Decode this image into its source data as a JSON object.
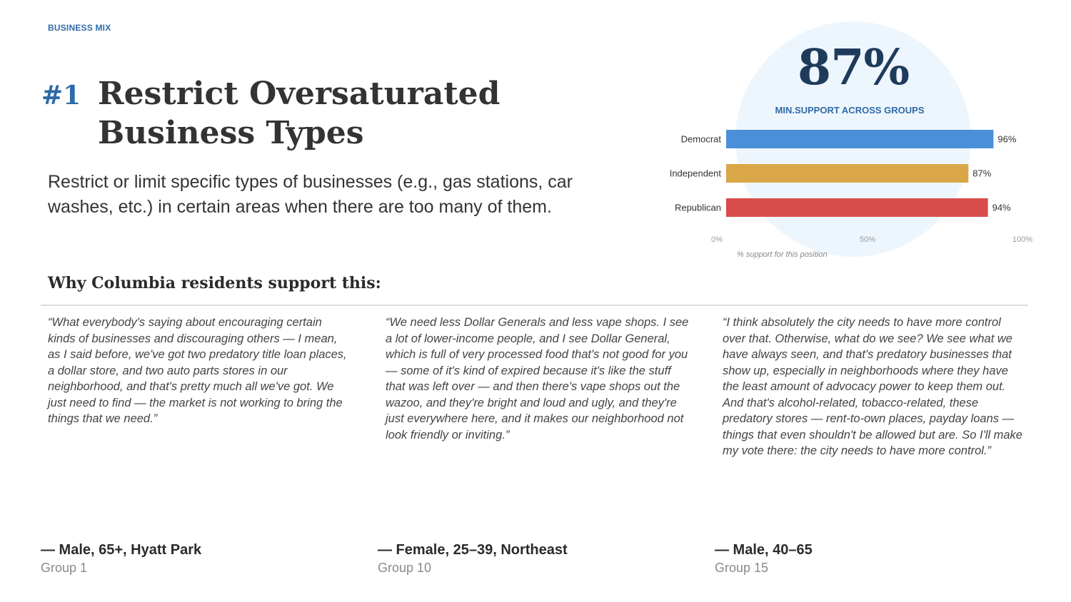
{
  "header": {
    "eyebrow": "BUSINESS MIX",
    "rank": "#1",
    "title": "Restrict Oversaturated Business Types",
    "description": "Restrict or limit specific types of businesses (e.g., gas stations, car washes, etc.) in certain areas when there are too many of them."
  },
  "summary": {
    "headline_value": "87%",
    "headline_label": "MIN.SUPPORT ACROSS GROUPS"
  },
  "section": {
    "heading": "Why Columbia residents support this:"
  },
  "quotes": [
    {
      "text": "“What everybody's saying about encouraging certain kinds of businesses and discouraging others — I mean, as I said before, we've got two predatory title loan places, a dollar store, and two auto parts stores in our neighborhood, and that's pretty much all we've got. We just need to find — the market is not working to bring the things that we need.”",
      "speaker": "— Male, 65+, Hyatt Park",
      "group": "Group 1"
    },
    {
      "text": "“We need less Dollar Generals and less vape shops. I see a lot of lower-income people, and I see Dollar General, which is full of very processed food that's not good for you — some of it's kind of expired because it's like the stuff that was left over — and then there's vape shops out the wazoo, and they're bright and loud and ugly, and they're just everywhere here, and it makes our neighborhood not look friendly or inviting.”",
      "speaker": "— Female, 25–39, Northeast",
      "group": "Group 10"
    },
    {
      "text": "“I think absolutely the city needs to have more control over that. Otherwise, what do we see? We see what we have always seen, and that's predatory businesses that show up, especially in neighborhoods where they have the least amount of advocacy power to keep them out. And that's alcohol-related, tobacco-related, these predatory stores — rent-to-own places, payday loans — things that even shouldn't be allowed but are. So I'll make my vote there: the city needs to have more control.”",
      "speaker": "— Male, 40–65",
      "group": "Group 15"
    }
  ],
  "chart_data": {
    "type": "bar",
    "orientation": "horizontal",
    "categories": [
      "Democrat",
      "Independent",
      "Republican"
    ],
    "values": [
      96,
      87,
      94
    ],
    "value_labels": [
      "96%",
      "87%",
      "94%"
    ],
    "colors": [
      "#4a90d9",
      "#d9a748",
      "#d94c4c"
    ],
    "xlim": [
      0,
      100
    ],
    "xticks": [
      "0%",
      "50%",
      "100%"
    ],
    "xlabel": "% support for this position",
    "grid": false
  }
}
